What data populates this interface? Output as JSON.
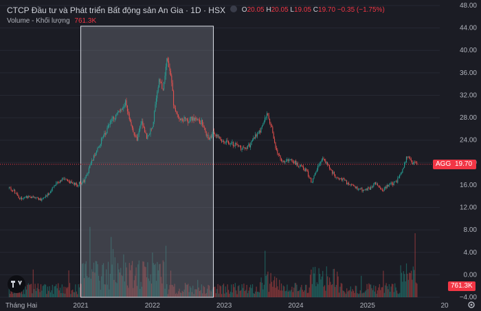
{
  "header": {
    "title": "CTCP Đầu tư và Phát triển Bất động sản An Gia · 1D · HSX",
    "ohlc": [
      {
        "k": "O",
        "v": "20.05"
      },
      {
        "k": "H",
        "v": "20.05"
      },
      {
        "k": "L",
        "v": "19.05"
      },
      {
        "k": "C",
        "v": "19.70"
      }
    ],
    "change": "−0.35 (−1.75%)"
  },
  "volume": {
    "label": "Volume - Khối lượng",
    "value": "761.3K"
  },
  "symbol_tag": {
    "label": "AGG",
    "price": "19.70",
    "color": "#f23645"
  },
  "volume_tag": {
    "value": "761.3K",
    "color": "#f23645"
  },
  "colors": {
    "up": "#26a69a",
    "down": "#ef5350",
    "background": "#1b1c24",
    "selection": "#787b86"
  },
  "icons": {
    "logo": "tradingview-logo-icon",
    "settings": "gear-icon"
  },
  "chart_data": {
    "type": "candlestick",
    "y_axis": {
      "ticks": [
        -4,
        0,
        4,
        8,
        12,
        16,
        20,
        24,
        28,
        32,
        36,
        40,
        44,
        48
      ],
      "labels": [
        "−4.00",
        "0.00",
        "4.00",
        "8.00",
        "12.00",
        "16.00",
        "20.00",
        "24.00",
        "28.00",
        "32.00",
        "36.00",
        "40.00",
        "44.00",
        "48.00"
      ],
      "range": [
        -4,
        48
      ]
    },
    "x_axis": {
      "labels": [
        "Tháng Hai",
        "2021",
        "2022",
        "2023",
        "2024",
        "2025",
        "20"
      ],
      "range": [
        2019.95,
        2026.2
      ]
    },
    "last_price": 19.7,
    "selection_range": [
      2021.0,
      2022.85
    ],
    "price_path": [
      {
        "t": 2020.0,
        "p": 15.5
      },
      {
        "t": 2020.08,
        "p": 14.8
      },
      {
        "t": 2020.15,
        "p": 13.6
      },
      {
        "t": 2020.25,
        "p": 13.9
      },
      {
        "t": 2020.35,
        "p": 13.8
      },
      {
        "t": 2020.45,
        "p": 13.4
      },
      {
        "t": 2020.55,
        "p": 14.5
      },
      {
        "t": 2020.65,
        "p": 16.3
      },
      {
        "t": 2020.75,
        "p": 17.0
      },
      {
        "t": 2020.85,
        "p": 16.5
      },
      {
        "t": 2020.95,
        "p": 16.0
      },
      {
        "t": 2021.05,
        "p": 16.8
      },
      {
        "t": 2021.15,
        "p": 20.0
      },
      {
        "t": 2021.25,
        "p": 23.0
      },
      {
        "t": 2021.35,
        "p": 25.5
      },
      {
        "t": 2021.45,
        "p": 28.0
      },
      {
        "t": 2021.55,
        "p": 29.0
      },
      {
        "t": 2021.62,
        "p": 31.0
      },
      {
        "t": 2021.7,
        "p": 27.0
      },
      {
        "t": 2021.78,
        "p": 24.0
      },
      {
        "t": 2021.85,
        "p": 27.5
      },
      {
        "t": 2021.92,
        "p": 24.5
      },
      {
        "t": 2022.0,
        "p": 26.5
      },
      {
        "t": 2022.05,
        "p": 31.0
      },
      {
        "t": 2022.1,
        "p": 35.0
      },
      {
        "t": 2022.15,
        "p": 33.0
      },
      {
        "t": 2022.2,
        "p": 38.0
      },
      {
        "t": 2022.25,
        "p": 36.0
      },
      {
        "t": 2022.3,
        "p": 30.0
      },
      {
        "t": 2022.38,
        "p": 28.0
      },
      {
        "t": 2022.5,
        "p": 27.5
      },
      {
        "t": 2022.6,
        "p": 28.0
      },
      {
        "t": 2022.7,
        "p": 27.0
      },
      {
        "t": 2022.78,
        "p": 24.0
      },
      {
        "t": 2022.85,
        "p": 25.5
      },
      {
        "t": 2022.95,
        "p": 24.0
      },
      {
        "t": 2023.1,
        "p": 23.5
      },
      {
        "t": 2023.25,
        "p": 22.5
      },
      {
        "t": 2023.35,
        "p": 23.0
      },
      {
        "t": 2023.45,
        "p": 25.0
      },
      {
        "t": 2023.52,
        "p": 26.0
      },
      {
        "t": 2023.6,
        "p": 28.5
      },
      {
        "t": 2023.65,
        "p": 27.0
      },
      {
        "t": 2023.72,
        "p": 22.5
      },
      {
        "t": 2023.8,
        "p": 20.0
      },
      {
        "t": 2023.92,
        "p": 20.5
      },
      {
        "t": 2024.05,
        "p": 19.5
      },
      {
        "t": 2024.15,
        "p": 18.5
      },
      {
        "t": 2024.22,
        "p": 16.5
      },
      {
        "t": 2024.3,
        "p": 19.0
      },
      {
        "t": 2024.38,
        "p": 21.0
      },
      {
        "t": 2024.45,
        "p": 19.5
      },
      {
        "t": 2024.55,
        "p": 17.5
      },
      {
        "t": 2024.65,
        "p": 17.0
      },
      {
        "t": 2024.75,
        "p": 16.0
      },
      {
        "t": 2024.85,
        "p": 15.5
      },
      {
        "t": 2024.95,
        "p": 15.0
      },
      {
        "t": 2025.05,
        "p": 15.5
      },
      {
        "t": 2025.12,
        "p": 16.5
      },
      {
        "t": 2025.2,
        "p": 15.0
      },
      {
        "t": 2025.3,
        "p": 16.0
      },
      {
        "t": 2025.4,
        "p": 16.5
      },
      {
        "t": 2025.48,
        "p": 18.5
      },
      {
        "t": 2025.55,
        "p": 21.0
      },
      {
        "t": 2025.62,
        "p": 20.0
      },
      {
        "t": 2025.7,
        "p": 19.7
      }
    ]
  }
}
